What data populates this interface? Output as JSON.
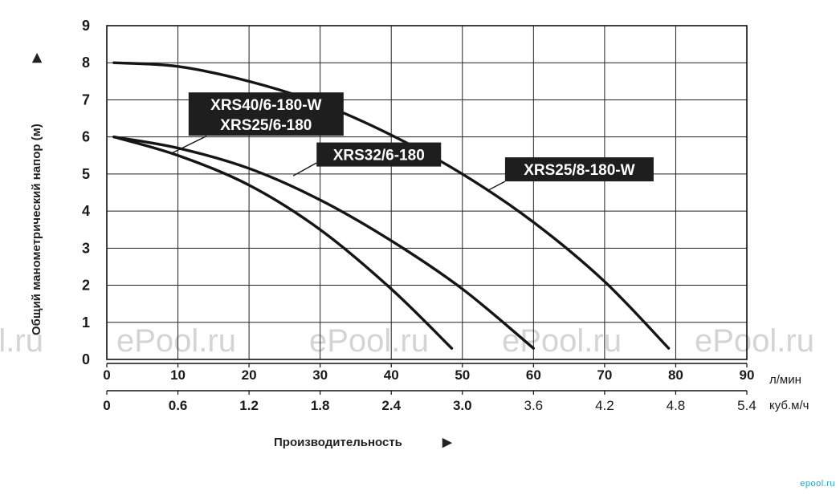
{
  "chart_data": {
    "type": "line",
    "ylabel": "Общий манометрический напор (м)",
    "ylabel_arrow": "▲",
    "xlabel": "Производительность",
    "xlabel_arrow": "▶",
    "ylim": [
      0,
      9
    ],
    "xlim": [
      0,
      90
    ],
    "yticks": [
      "0",
      "1",
      "2",
      "3",
      "4",
      "5",
      "6",
      "7",
      "8",
      "9"
    ],
    "xticks_primary": [
      "0",
      "10",
      "20",
      "30",
      "40",
      "50",
      "60",
      "70",
      "80",
      "90"
    ],
    "x_unit_primary": "л/мин",
    "xticks_secondary": [
      "0",
      "0.6",
      "1.2",
      "1.8",
      "2.4",
      "3.0",
      "3.6",
      "4.2",
      "4.8",
      "5.4"
    ],
    "x_unit_secondary": "куб.м/ч",
    "grid": true,
    "series": [
      {
        "name": "XRS40/6-180-W",
        "name2": "XRS25/6-180",
        "x": [
          1,
          10,
          20,
          30,
          40,
          48.5
        ],
        "y": [
          6.0,
          5.5,
          4.7,
          3.5,
          1.9,
          0.3
        ]
      },
      {
        "name": "XRS32/6-180",
        "x": [
          1,
          10,
          20,
          30,
          40,
          50,
          60
        ],
        "y": [
          6.0,
          5.7,
          5.15,
          4.3,
          3.2,
          1.9,
          0.3
        ]
      },
      {
        "name": "XRS25/8-180-W",
        "x": [
          1,
          10,
          20,
          30,
          40,
          50,
          60,
          70,
          79
        ],
        "y": [
          8.0,
          7.9,
          7.5,
          6.9,
          6.05,
          5.0,
          3.7,
          2.1,
          0.3
        ]
      }
    ],
    "watermark": "ePool.ru"
  },
  "brand": "epool.ru"
}
